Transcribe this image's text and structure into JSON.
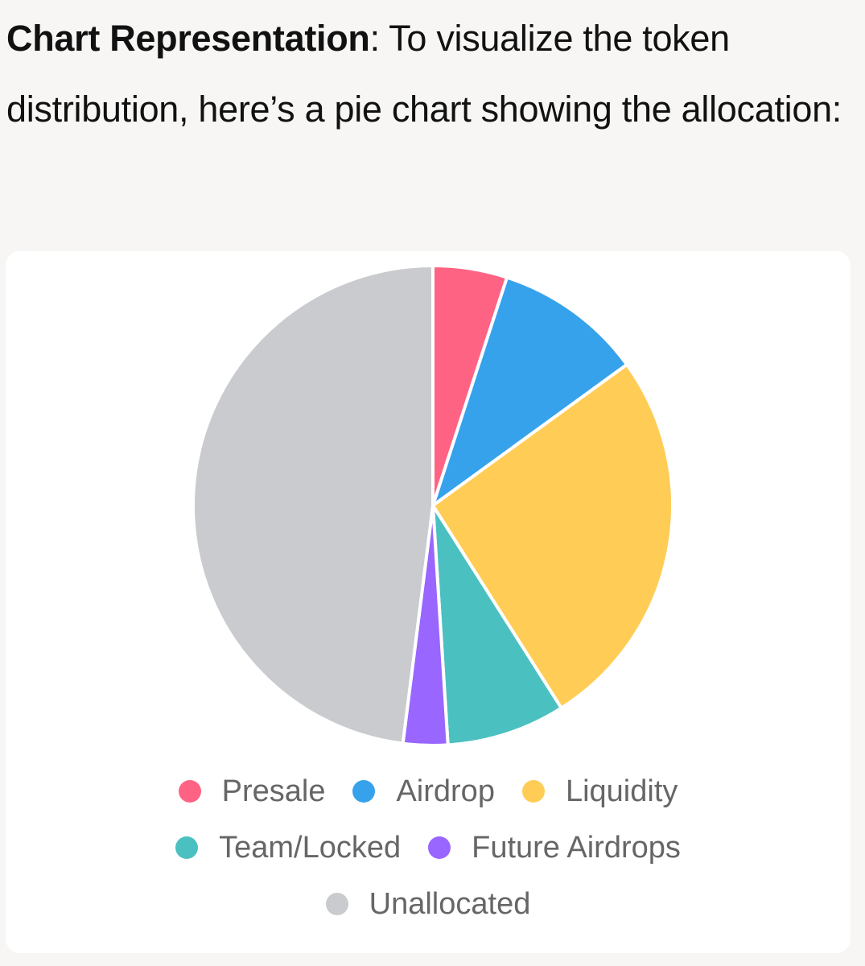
{
  "intro": {
    "bold": "Chart Representation",
    "text": ": To visualize the token distribution, here’s a pie chart showing the allocation:"
  },
  "chart_data": {
    "type": "pie",
    "categories": [
      "Presale",
      "Airdrop",
      "Liquidity",
      "Team/Locked",
      "Future Airdrops",
      "Unallocated"
    ],
    "values": [
      5,
      10,
      26,
      8,
      3,
      48
    ],
    "colors": [
      "#ff6384",
      "#36a2eb",
      "#ffcd56",
      "#4bc0c0",
      "#9966ff",
      "#c9cbcf"
    ],
    "legend_position": "bottom",
    "title": ""
  }
}
